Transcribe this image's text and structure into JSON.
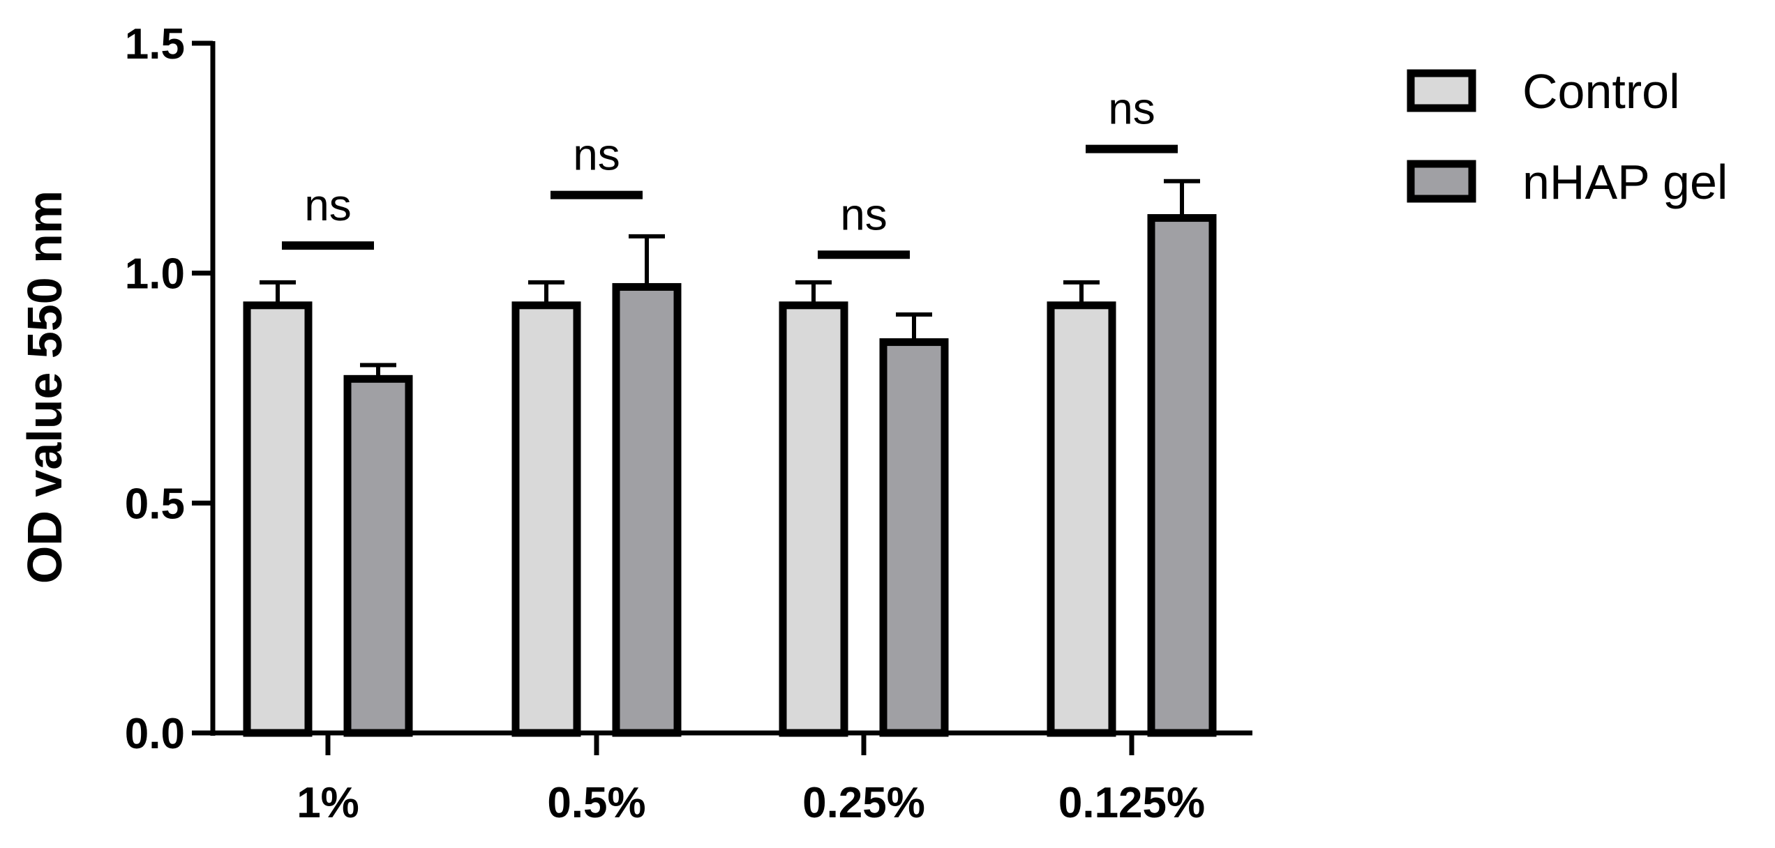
{
  "chart_data": {
    "type": "bar",
    "title": "",
    "xlabel": "",
    "ylabel": "OD value 550 nm",
    "categories": [
      "1%",
      "0.5%",
      "0.25%",
      "0.125%"
    ],
    "ylim": [
      0,
      1.5
    ],
    "yticks": [
      0.0,
      0.5,
      1.0,
      1.5
    ],
    "ytick_labels": [
      "0.0",
      "0.5",
      "1.0",
      "1.5"
    ],
    "grid": false,
    "legend_position": "top-right",
    "series": [
      {
        "name": "Control",
        "color": "#d9d9d9",
        "values": [
          0.93,
          0.93,
          0.93,
          0.93
        ],
        "errors": [
          0.05,
          0.05,
          0.05,
          0.05
        ]
      },
      {
        "name": "nHAP gel",
        "color": "#a0a0a4",
        "values": [
          0.77,
          0.97,
          0.85,
          1.12
        ],
        "errors": [
          0.03,
          0.11,
          0.06,
          0.08
        ]
      }
    ],
    "annotations": [
      {
        "category": "1%",
        "text": "ns",
        "level": 1.06
      },
      {
        "category": "0.5%",
        "text": "ns",
        "level": 1.17
      },
      {
        "category": "0.25%",
        "text": "ns",
        "level": 1.04
      },
      {
        "category": "0.125%",
        "text": "ns",
        "level": 1.27
      }
    ]
  }
}
